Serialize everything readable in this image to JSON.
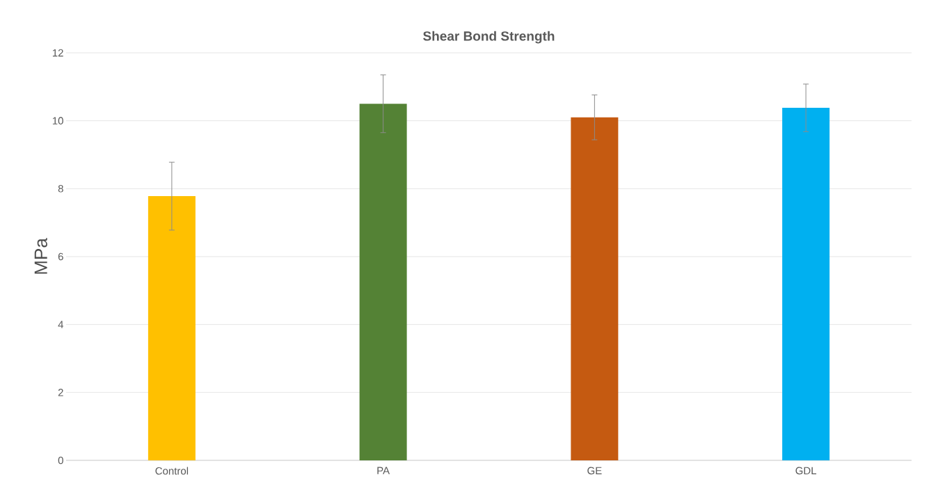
{
  "chart_data": {
    "type": "bar",
    "title": "Shear Bond Strength",
    "ylabel": "MPa",
    "categories": [
      "Control",
      "PA",
      "GE",
      "GDL"
    ],
    "values": [
      7.78,
      10.5,
      10.1,
      10.38
    ],
    "errors": [
      1.0,
      0.85,
      0.66,
      0.7
    ],
    "colors": [
      "#ffc000",
      "#548235",
      "#c55a11",
      "#00b0f0"
    ],
    "ylim": [
      0,
      12
    ],
    "yticks": [
      0,
      2,
      4,
      6,
      8,
      10,
      12
    ],
    "grid": "y"
  }
}
